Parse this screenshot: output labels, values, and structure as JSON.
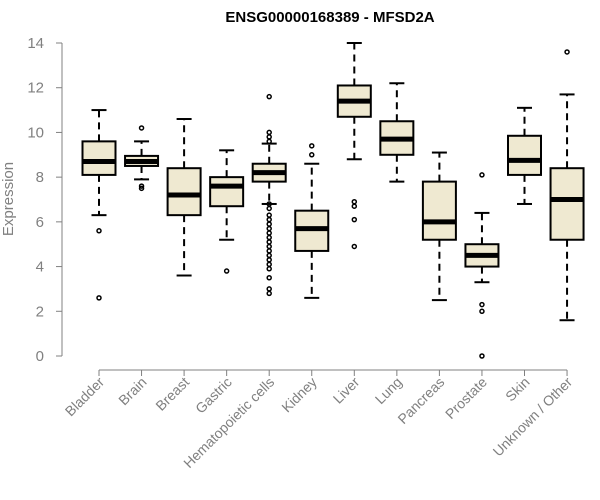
{
  "chart_data": {
    "type": "boxplot",
    "title": "ENSG00000168389 - MFSD2A",
    "xlabel": "",
    "ylabel": "Expression",
    "ylim": [
      0,
      14
    ],
    "yticks": [
      0,
      2,
      4,
      6,
      8,
      10,
      12,
      14
    ],
    "box_color": "#EFE9D1",
    "categories": [
      "Bladder",
      "Brain",
      "Breast",
      "Gastric",
      "Hematopoietic cells",
      "Kidney",
      "Liver",
      "Lung",
      "Pancreas",
      "Prostate",
      "Skin",
      "Unknown / Other"
    ],
    "boxes": [
      {
        "whisker_low": 6.3,
        "q1": 8.1,
        "median": 8.7,
        "q3": 9.6,
        "whisker_high": 11.0,
        "outliers": [
          5.6,
          2.6
        ]
      },
      {
        "whisker_low": 7.9,
        "q1": 8.5,
        "median": 8.7,
        "q3": 8.95,
        "whisker_high": 9.6,
        "outliers": [
          10.2,
          7.6,
          7.5
        ]
      },
      {
        "whisker_low": 3.6,
        "q1": 6.3,
        "median": 7.2,
        "q3": 8.4,
        "whisker_high": 10.6,
        "outliers": []
      },
      {
        "whisker_low": 5.2,
        "q1": 6.7,
        "median": 7.6,
        "q3": 8.0,
        "whisker_high": 9.2,
        "outliers": [
          3.8
        ]
      },
      {
        "whisker_low": 6.8,
        "q1": 7.8,
        "median": 8.2,
        "q3": 8.6,
        "whisker_high": 9.5,
        "outliers": [
          11.6,
          10.0,
          9.8,
          9.6,
          6.8,
          6.6,
          6.3,
          6.1,
          5.9,
          5.7,
          5.5,
          5.3,
          5.1,
          4.9,
          4.7,
          4.5,
          4.3,
          4.1,
          3.9,
          3.5,
          3.0,
          2.8
        ]
      },
      {
        "whisker_low": 2.6,
        "q1": 4.7,
        "median": 5.7,
        "q3": 6.5,
        "whisker_high": 8.6,
        "outliers": [
          9.4,
          9.0
        ]
      },
      {
        "whisker_low": 8.8,
        "q1": 10.7,
        "median": 11.4,
        "q3": 12.1,
        "whisker_high": 14.0,
        "outliers": [
          6.9,
          6.7,
          6.1,
          4.9
        ]
      },
      {
        "whisker_low": 7.8,
        "q1": 9.0,
        "median": 9.7,
        "q3": 10.5,
        "whisker_high": 12.2,
        "outliers": []
      },
      {
        "whisker_low": 2.5,
        "q1": 5.2,
        "median": 6.0,
        "q3": 7.8,
        "whisker_high": 9.1,
        "outliers": []
      },
      {
        "whisker_low": 3.3,
        "q1": 4.0,
        "median": 4.5,
        "q3": 5.0,
        "whisker_high": 6.4,
        "outliers": [
          8.1,
          2.3,
          2.0,
          0.0
        ]
      },
      {
        "whisker_low": 6.8,
        "q1": 8.1,
        "median": 8.75,
        "q3": 9.85,
        "whisker_high": 11.1,
        "outliers": []
      },
      {
        "whisker_low": 1.6,
        "q1": 5.2,
        "median": 7.0,
        "q3": 8.4,
        "whisker_high": 11.7,
        "outliers": [
          13.6
        ]
      }
    ]
  }
}
